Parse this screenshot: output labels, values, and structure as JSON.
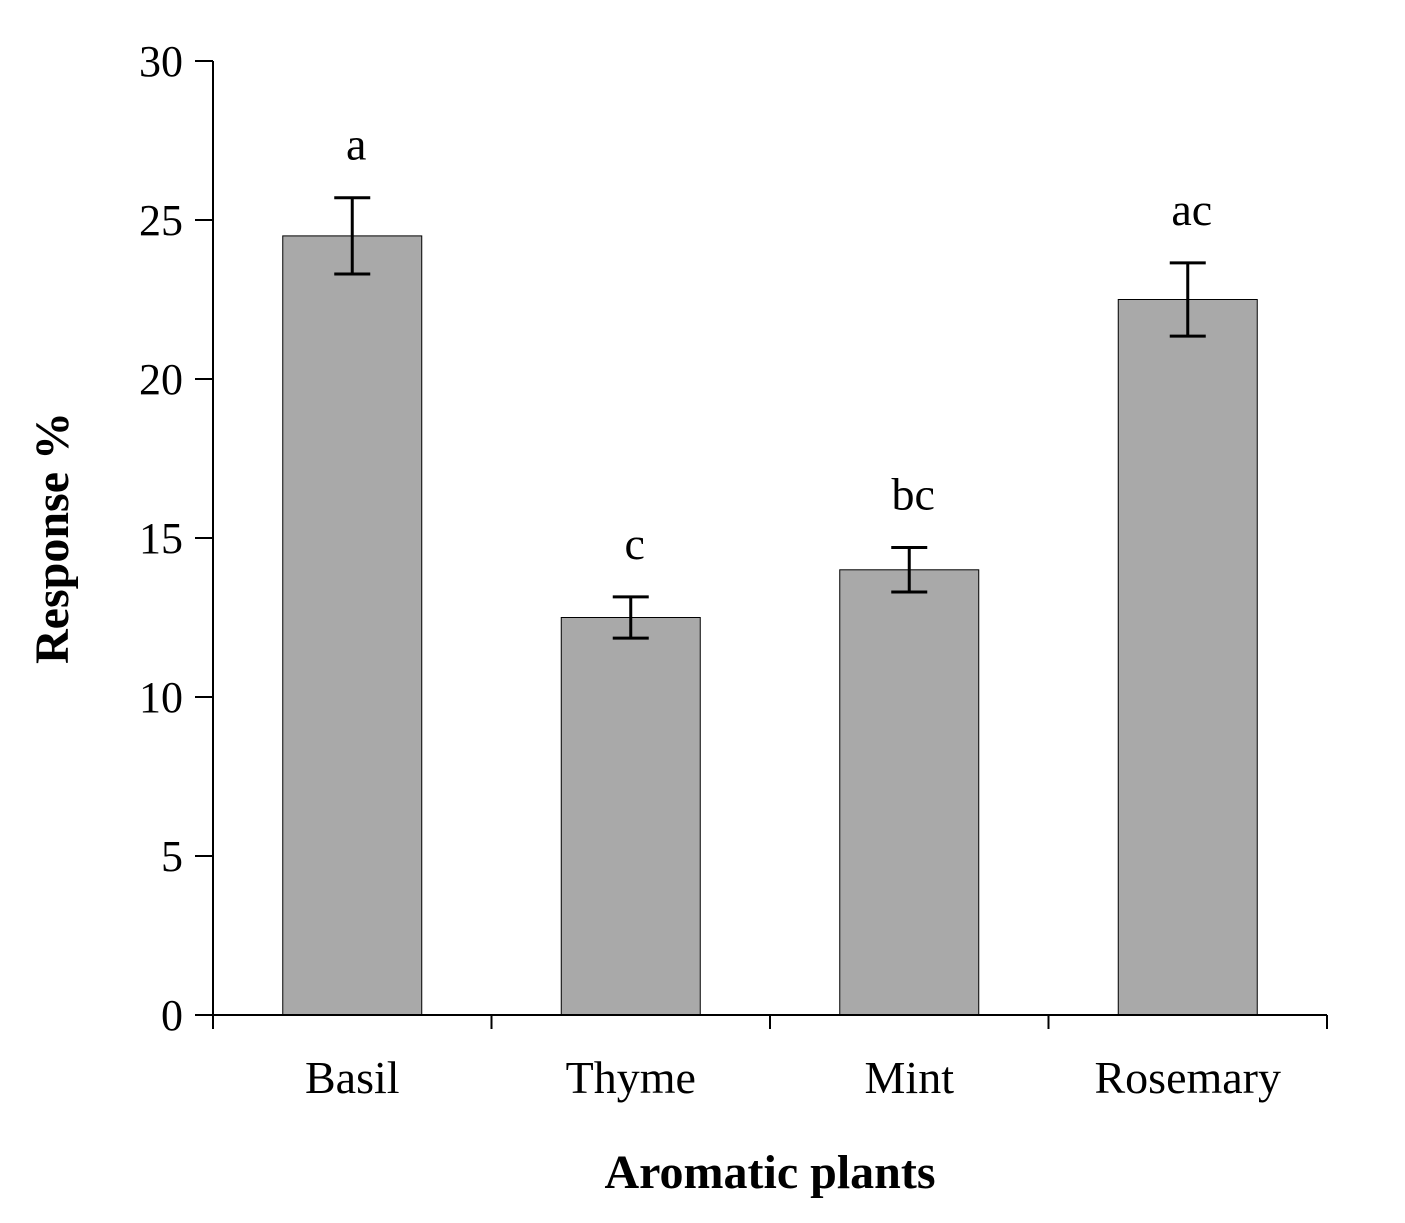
{
  "chart_data": {
    "type": "bar",
    "title": "",
    "xlabel": "Aromatic plants",
    "ylabel": "Response %",
    "ylim": [
      0,
      30
    ],
    "yticks": [
      0,
      5,
      10,
      15,
      20,
      25,
      30
    ],
    "ytick_labels": [
      "0",
      "5",
      "10",
      "15",
      "20",
      "25",
      "30"
    ],
    "categories": [
      "Basil",
      "Thyme",
      "Mint",
      "Rosemary"
    ],
    "values": [
      24.5,
      12.5,
      14.0,
      22.5
    ],
    "errors": [
      1.2,
      0.65,
      0.7,
      1.15
    ],
    "significance_labels": [
      "a",
      "c",
      "bc",
      "ac"
    ],
    "grid": false,
    "legend": "none",
    "bar_color": "#a9a9a9"
  }
}
